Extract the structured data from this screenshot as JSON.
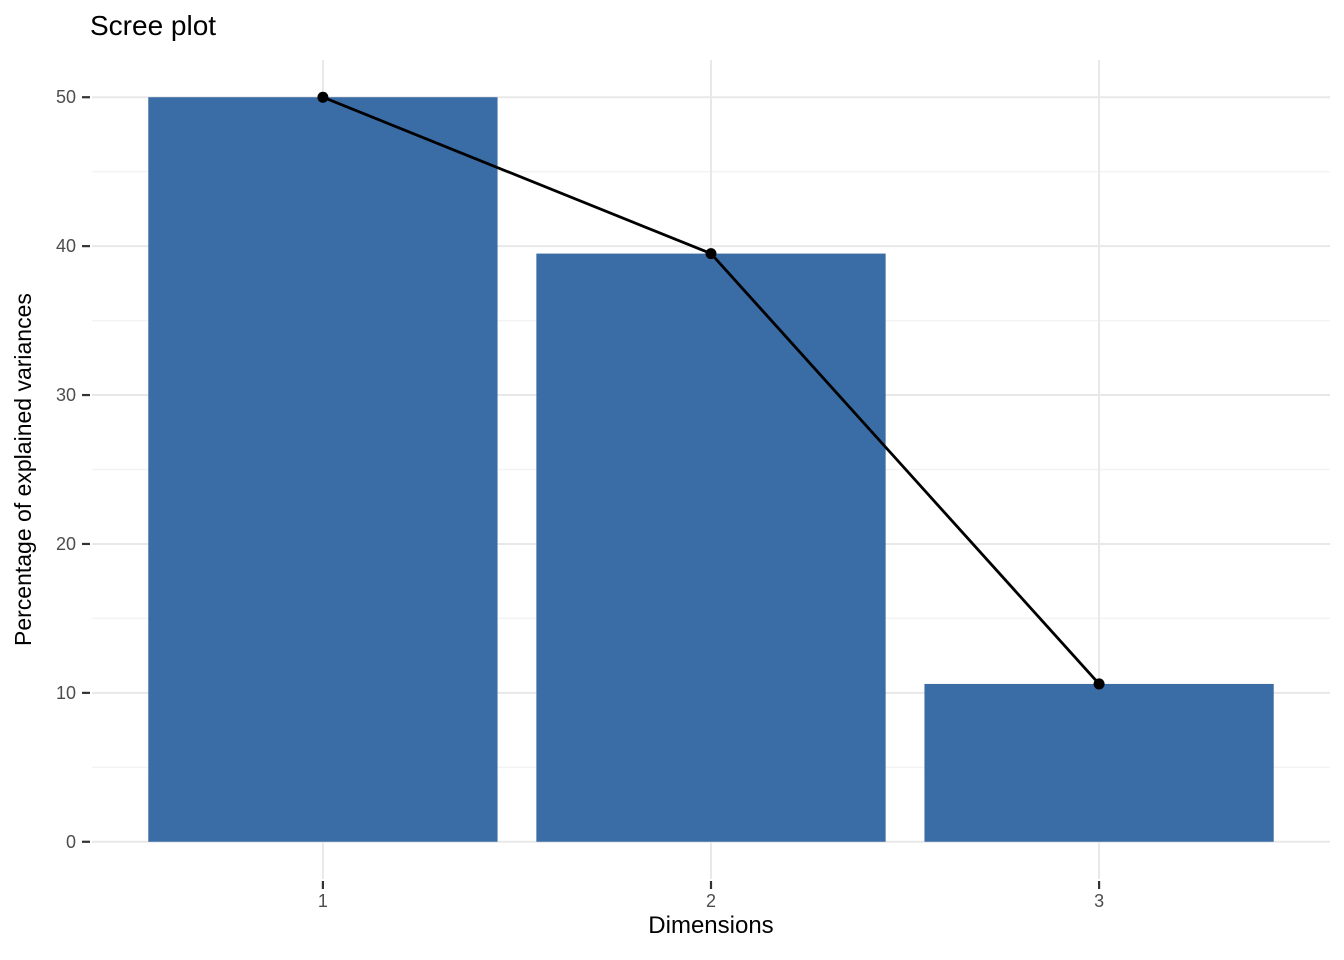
{
  "page": {
    "background": "#FFFFFF"
  },
  "chart_data": {
    "type": "bar",
    "overlay": "line",
    "title": "Scree plot",
    "xlabel": "Dimensions",
    "ylabel": "Percentage of explained variances",
    "categories": [
      "1",
      "2",
      "3"
    ],
    "values": [
      50.0,
      39.5,
      10.6
    ],
    "ylim": [
      0,
      50
    ],
    "yticks": [
      0,
      10,
      20,
      30,
      40,
      50
    ],
    "yticks_minor": [
      5,
      15,
      25,
      35,
      45
    ],
    "grid": "horizontal major+minor, vertical major only",
    "legend": "none",
    "colors": {
      "bar": "#3A6CA6",
      "line": "#000000",
      "point": "#000000",
      "grid_major": "#E8E8E8",
      "grid_minor": "#F3F3F3",
      "tick_label": "#4D4D4D",
      "axis_tick": "#333333",
      "title": "#000000",
      "background": "#FFFFFF"
    }
  }
}
